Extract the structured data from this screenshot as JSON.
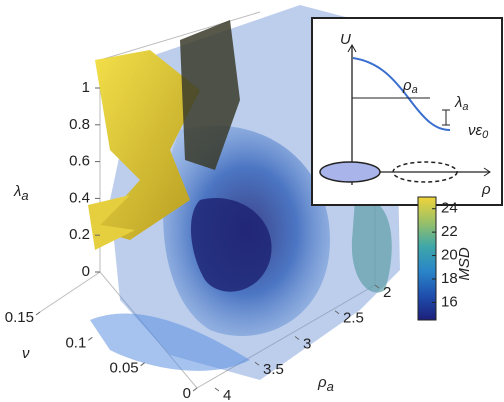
{
  "chart_data": {
    "type": "isosurface3d",
    "zlabel": {
      "symbol": "λ",
      "subscript": "a"
    },
    "zlim": [
      0,
      1
    ],
    "zticks": [
      0,
      0.2,
      0.4,
      0.6,
      0.8,
      1
    ],
    "xlabel": "ν",
    "xlim": [
      0,
      0.15
    ],
    "xticks": [
      0,
      0.05,
      0.1,
      0.15
    ],
    "ylabel": {
      "symbol": "ρ",
      "subscript": "a"
    },
    "ylim": [
      2,
      4
    ],
    "yticks": [
      2,
      2.5,
      3,
      3.5,
      4
    ],
    "colorbar": {
      "label": "MSD",
      "lim": [
        14.5,
        25
      ],
      "ticks": [
        16,
        18,
        20,
        22,
        24
      ],
      "colormap": [
        "#1c1f7a",
        "#1f4fae",
        "#2a86c8",
        "#3fa7a8",
        "#9cc166",
        "#f0d43a"
      ]
    },
    "inset": {
      "ylabel": "U",
      "xlabel": "ρ",
      "width_label": {
        "symbol": "ρ",
        "subscript": "a"
      },
      "height_label": {
        "symbol": "λ",
        "subscript": "a"
      },
      "floor_label": {
        "symbol": "νε",
        "subscript": "0"
      }
    }
  }
}
